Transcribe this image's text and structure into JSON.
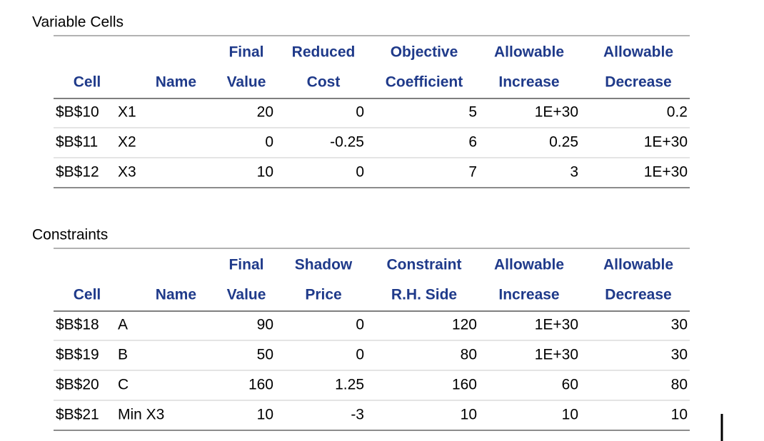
{
  "sections": [
    {
      "title": "Variable Cells",
      "header_top": [
        "Final",
        "Reduced",
        "Objective",
        "Allowable",
        "Allowable"
      ],
      "header_bottom": [
        "Cell",
        "Name",
        "Value",
        "Cost",
        "Coefficient",
        "Increase",
        "Decrease"
      ],
      "rows": [
        [
          "$B$10",
          "X1",
          "20",
          "0",
          "5",
          "1E+30",
          "0.2"
        ],
        [
          "$B$11",
          "X2",
          "0",
          "-0.25",
          "6",
          "0.25",
          "1E+30"
        ],
        [
          "$B$12",
          "X3",
          "10",
          "0",
          "7",
          "3",
          "1E+30"
        ]
      ]
    },
    {
      "title": "Constraints",
      "header_top": [
        "Final",
        "Shadow",
        "Constraint",
        "Allowable",
        "Allowable"
      ],
      "header_bottom": [
        "Cell",
        "Name",
        "Value",
        "Price",
        "R.H. Side",
        "Increase",
        "Decrease"
      ],
      "rows": [
        [
          "$B$18",
          "A",
          "90",
          "0",
          "120",
          "1E+30",
          "30"
        ],
        [
          "$B$19",
          "B",
          "50",
          "0",
          "80",
          "1E+30",
          "30"
        ],
        [
          "$B$20",
          "C",
          "160",
          "1.25",
          "160",
          "60",
          "80"
        ],
        [
          "$B$21",
          "Min X3",
          "10",
          "-3",
          "10",
          "10",
          "10"
        ]
      ]
    }
  ]
}
